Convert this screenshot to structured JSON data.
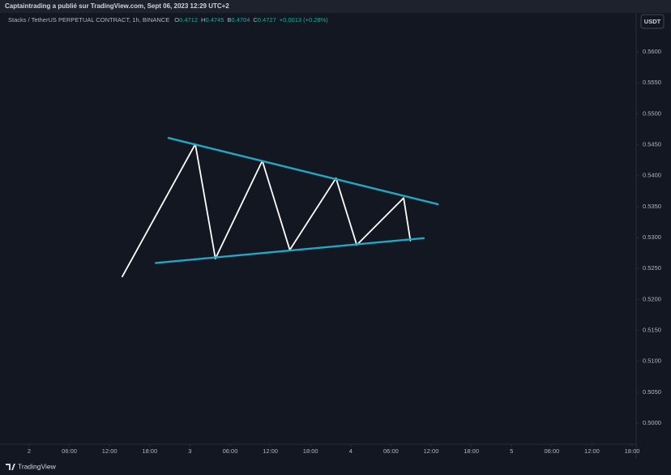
{
  "header": {
    "title": "Captaintrading a publié sur TradingView.com, Sept 06, 2023 12:29 UTC+2"
  },
  "chart_data": {
    "type": "line",
    "symbol": "Stacks / TetherUS PERPETUAL CONTRACT, 1h, BINANCE",
    "ohlc": [
      {
        "label": "O",
        "value": 0.4712
      },
      {
        "label": "H",
        "value": 0.4745
      },
      {
        "label": "B",
        "value": 0.4704
      },
      {
        "label": "C",
        "value": 0.4727
      }
    ],
    "change": "+0.0013 (+0.28%)",
    "currency": "USDT",
    "xlim": [
      -4.35,
      90.6
    ],
    "ylim": [
      0.4966,
      0.5663
    ],
    "xticks": [
      {
        "value": 0,
        "label": "2"
      },
      {
        "value": 6,
        "label": "06:00"
      },
      {
        "value": 12,
        "label": "12:00"
      },
      {
        "value": 18,
        "label": "18:00"
      },
      {
        "value": 24,
        "label": "3"
      },
      {
        "value": 30,
        "label": "06:00"
      },
      {
        "value": 36,
        "label": "12:00"
      },
      {
        "value": 42,
        "label": "18:00"
      },
      {
        "value": 48,
        "label": "4"
      },
      {
        "value": 54,
        "label": "06:00"
      },
      {
        "value": 60,
        "label": "12:00"
      },
      {
        "value": 66,
        "label": "18:00"
      },
      {
        "value": 72,
        "label": "5"
      },
      {
        "value": 78,
        "label": "06:00"
      },
      {
        "value": 84,
        "label": "12:00"
      },
      {
        "value": 90,
        "label": "18:00"
      }
    ],
    "yticks": [
      {
        "value": 0.56,
        "label": "0.5600"
      },
      {
        "value": 0.555,
        "label": "0.5550"
      },
      {
        "value": 0.55,
        "label": "0.5500"
      },
      {
        "value": 0.545,
        "label": "0.5450"
      },
      {
        "value": 0.54,
        "label": "0.5400"
      },
      {
        "value": 0.535,
        "label": "0.5350"
      },
      {
        "value": 0.53,
        "label": "0.5300"
      },
      {
        "value": 0.525,
        "label": "0.5250"
      },
      {
        "value": 0.52,
        "label": "0.5200"
      },
      {
        "value": 0.515,
        "label": "0.5150"
      },
      {
        "value": 0.51,
        "label": "0.5100"
      },
      {
        "value": 0.505,
        "label": "0.5050"
      },
      {
        "value": 0.5,
        "label": "0.5000"
      }
    ],
    "series": [
      {
        "color": "#ffffff",
        "x": [
          13.9,
          24.8,
          27.8,
          34.8,
          38.9,
          45.8,
          48.9,
          55.9,
          56.9
        ],
        "values": [
          0.5237,
          0.5451,
          0.5266,
          0.5424,
          0.528,
          0.5396,
          0.5288,
          0.5364,
          0.5295
        ]
      },
      {
        "color": "#22a7c4",
        "x": [
          20.8,
          61.0
        ],
        "values": [
          0.5461,
          0.5354
        ]
      },
      {
        "color": "#22a7c4",
        "x": [
          18.9,
          58.9
        ],
        "values": [
          0.5259,
          0.5299
        ]
      }
    ]
  },
  "footer": {
    "brand": "TradingView"
  }
}
